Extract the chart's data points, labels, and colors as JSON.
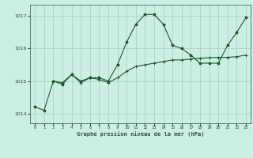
{
  "title": "Graphe pression niveau de la mer (hPa)",
  "background_color": "#cceee4",
  "line_color": "#1a5c2a",
  "grid_color": "#aad4c4",
  "ylim": [
    1013.7,
    1017.35
  ],
  "xlim": [
    -0.5,
    23.5
  ],
  "yticks": [
    1014,
    1015,
    1016,
    1017
  ],
  "xticks": [
    0,
    1,
    2,
    3,
    4,
    5,
    6,
    7,
    8,
    9,
    10,
    11,
    12,
    13,
    14,
    15,
    16,
    17,
    18,
    19,
    20,
    21,
    22,
    23
  ],
  "series1_x": [
    0,
    1,
    2,
    3,
    4,
    5,
    6,
    7,
    8,
    9,
    10,
    11,
    12,
    13,
    14,
    15,
    16,
    17,
    18,
    19,
    20,
    21,
    22,
    23
  ],
  "series1_y": [
    1014.2,
    1014.1,
    1015.0,
    1014.9,
    1015.2,
    1015.0,
    1015.1,
    1015.1,
    1015.0,
    1015.5,
    1016.2,
    1016.75,
    1017.05,
    1017.05,
    1016.75,
    1016.1,
    1016.0,
    1015.8,
    1015.55,
    1015.55,
    1015.55,
    1016.1,
    1016.5,
    1016.95
  ],
  "series2_x": [
    2,
    3,
    4,
    5,
    6,
    7,
    8,
    9,
    10,
    11,
    12,
    13,
    14,
    15,
    16,
    17,
    18,
    19,
    20,
    21,
    22,
    23
  ],
  "series2_y": [
    1015.0,
    1014.95,
    1015.2,
    1014.95,
    1015.1,
    1015.05,
    1014.95,
    1015.1,
    1015.3,
    1015.45,
    1015.5,
    1015.55,
    1015.6,
    1015.65,
    1015.65,
    1015.68,
    1015.7,
    1015.72,
    1015.73,
    1015.73,
    1015.75,
    1015.8
  ]
}
